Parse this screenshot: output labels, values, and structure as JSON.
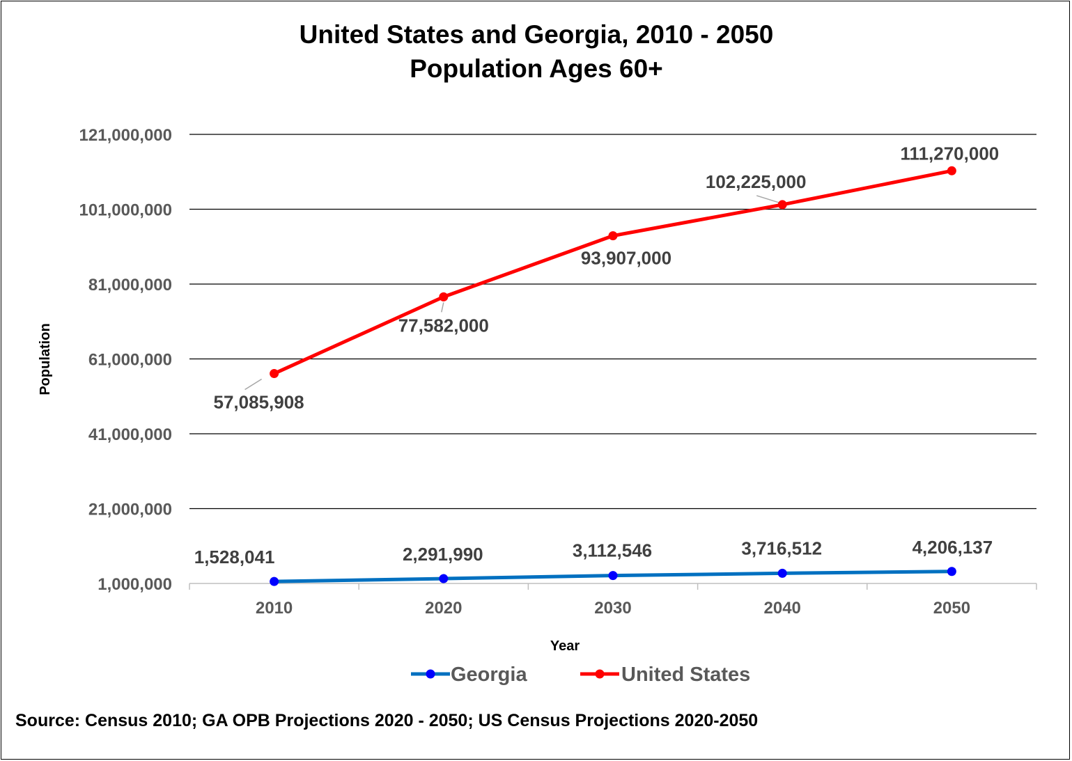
{
  "chart_data": {
    "type": "line",
    "title": [
      "United States and Georgia, 2010 - 2050",
      "Population Ages 60+"
    ],
    "xlabel": "Year",
    "ylabel": "Population",
    "x": [
      "2010",
      "2020",
      "2030",
      "2040",
      "2050"
    ],
    "ylim": [
      1000000,
      121000000
    ],
    "yticks": [
      1000000,
      21000000,
      41000000,
      61000000,
      81000000,
      101000000,
      121000000
    ],
    "ytick_labels": [
      "1,000,000",
      "21,000,000",
      "41,000,000",
      "61,000,000",
      "81,000,000",
      "101,000,000",
      "121,000,000"
    ],
    "grid": true,
    "legend": "bottom",
    "series": [
      {
        "name": "Georgia",
        "color": "#0070C0",
        "marker_color": "#0000FF",
        "values": [
          1528041,
          2291990,
          3112546,
          3716512,
          4206137
        ],
        "labels": [
          "1,528,041",
          "2,291,990",
          "3,112,546",
          "3,716,512",
          "4,206,137"
        ]
      },
      {
        "name": "United States",
        "color": "#FF0000",
        "marker_color": "#FF0000",
        "values": [
          57085908,
          77582000,
          93907000,
          102225000,
          111270000
        ],
        "labels": [
          "57,085,908",
          "77,582,000",
          "93,907,000",
          "102,225,000",
          "111,270,000"
        ]
      }
    ]
  },
  "source": "Source: Census 2010; GA OPB Projections 2020 - 2050; US Census Projections 2020-2050"
}
